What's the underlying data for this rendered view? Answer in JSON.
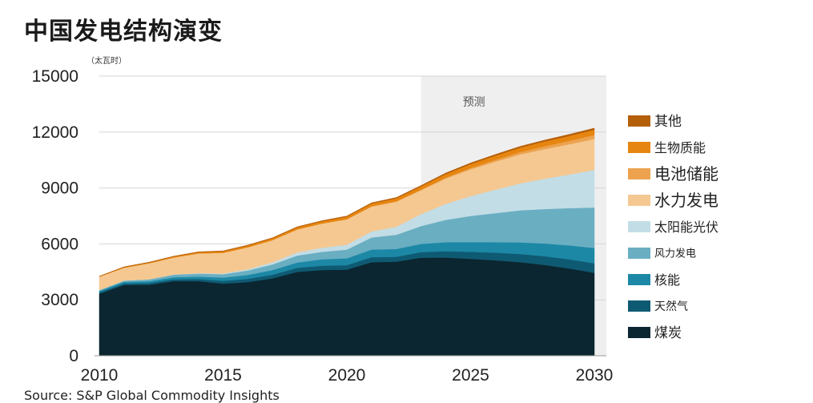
{
  "source": "Source: S&P Global Commodity Insights",
  "chart_data": {
    "type": "area",
    "stacked": true,
    "title": "中国发电结构演变",
    "unit": "（太瓦时）",
    "x": [
      2010,
      2011,
      2012,
      2013,
      2014,
      2015,
      2016,
      2017,
      2018,
      2019,
      2020,
      2021,
      2022,
      2023,
      2024,
      2025,
      2026,
      2027,
      2028,
      2029,
      2030
    ],
    "xlim": [
      2010,
      2030
    ],
    "xticks": [
      "2010",
      "2015",
      "2020",
      "2025",
      "2030"
    ],
    "ylim": [
      0,
      15000
    ],
    "yticks": [
      "0",
      "3000",
      "6000",
      "9000",
      "12000",
      "15000"
    ],
    "grid": "horizontal",
    "legend_position": "right",
    "forecast": {
      "label": "预测",
      "from": 2023,
      "to": 2030
    },
    "series": [
      {
        "name": "煤炭",
        "color": "#0b2630",
        "values": [
          3330,
          3800,
          3810,
          4000,
          4000,
          3870,
          3950,
          4150,
          4500,
          4600,
          4620,
          5020,
          5050,
          5260,
          5270,
          5200,
          5120,
          5020,
          4870,
          4680,
          4450
        ]
      },
      {
        "name": "天然气",
        "color": "#0f5a73",
        "values": [
          70,
          80,
          90,
          100,
          115,
          150,
          175,
          200,
          215,
          230,
          240,
          265,
          260,
          300,
          340,
          380,
          410,
          440,
          470,
          490,
          510
        ]
      },
      {
        "name": "核能",
        "color": "#1c88a5",
        "values": [
          75,
          85,
          95,
          110,
          130,
          170,
          210,
          250,
          290,
          345,
          365,
          410,
          420,
          440,
          480,
          520,
          560,
          620,
          680,
          750,
          820
        ]
      },
      {
        "name": "风力发电",
        "color": "#6aaec2",
        "values": [
          45,
          70,
          100,
          140,
          160,
          185,
          240,
          300,
          370,
          400,
          470,
          650,
          760,
          960,
          1200,
          1400,
          1560,
          1720,
          1850,
          2000,
          2170
        ]
      },
      {
        "name": "太阳能光伏",
        "color": "#c2dde6",
        "values": [
          0,
          0,
          5,
          10,
          25,
          40,
          65,
          115,
          175,
          220,
          260,
          320,
          425,
          640,
          860,
          1060,
          1260,
          1440,
          1630,
          1800,
          2020
        ]
      },
      {
        "name": "水力发电",
        "color": "#f5c891",
        "values": [
          720,
          690,
          860,
          910,
          1060,
          1110,
          1180,
          1190,
          1230,
          1300,
          1360,
          1340,
          1350,
          1280,
          1360,
          1440,
          1500,
          1560,
          1590,
          1630,
          1660
        ]
      },
      {
        "name": "电池储能",
        "color": "#eca24e",
        "values": [
          0,
          0,
          0,
          0,
          0,
          0,
          0,
          0,
          0,
          0,
          10,
          15,
          20,
          30,
          50,
          75,
          100,
          125,
          155,
          185,
          215
        ]
      },
      {
        "name": "生物质能",
        "color": "#e6850f",
        "values": [
          20,
          30,
          40,
          50,
          65,
          80,
          90,
          100,
          110,
          120,
          135,
          145,
          160,
          175,
          190,
          205,
          220,
          235,
          250,
          265,
          280
        ]
      },
      {
        "name": "其他",
        "color": "#b45f0a",
        "values": [
          10,
          15,
          15,
          20,
          20,
          20,
          25,
          25,
          30,
          30,
          35,
          40,
          45,
          50,
          55,
          60,
          65,
          70,
          75,
          80,
          85
        ]
      }
    ]
  }
}
